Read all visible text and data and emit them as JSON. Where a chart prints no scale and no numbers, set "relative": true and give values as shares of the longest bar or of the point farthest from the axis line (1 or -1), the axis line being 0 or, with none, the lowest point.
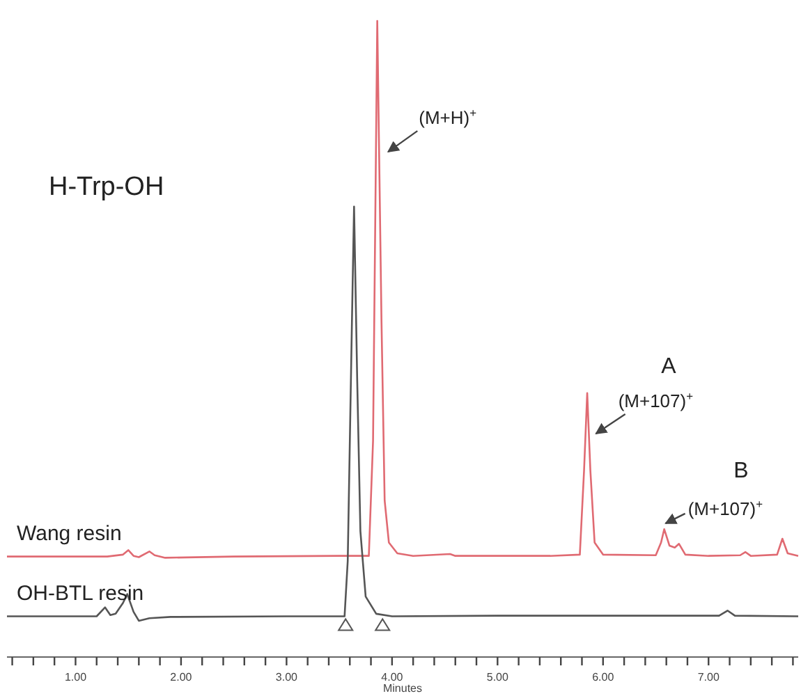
{
  "chart_data": {
    "type": "line",
    "relative": true,
    "xlabel": "Minutes",
    "xlim": [
      0.35,
      7.85
    ],
    "xticks": [
      {
        "value": 0.4,
        "label": null
      },
      {
        "value": 0.6,
        "label": null
      },
      {
        "value": 0.8,
        "label": null
      },
      {
        "value": 1,
        "label": "1.00"
      },
      {
        "value": 1.2,
        "label": null
      },
      {
        "value": 1.4,
        "label": null
      },
      {
        "value": 1.6,
        "label": null
      },
      {
        "value": 1.8,
        "label": null
      },
      {
        "value": 2,
        "label": "2.00"
      },
      {
        "value": 2.2,
        "label": null
      },
      {
        "value": 2.4,
        "label": null
      },
      {
        "value": 2.6,
        "label": null
      },
      {
        "value": 2.8,
        "label": null
      },
      {
        "value": 3,
        "label": "3.00"
      },
      {
        "value": 3.2,
        "label": null
      },
      {
        "value": 3.4,
        "label": null
      },
      {
        "value": 3.6,
        "label": null
      },
      {
        "value": 3.8,
        "label": null
      },
      {
        "value": 4,
        "label": "4.00"
      },
      {
        "value": 4.2,
        "label": null
      },
      {
        "value": 4.4,
        "label": null
      },
      {
        "value": 4.6,
        "label": null
      },
      {
        "value": 4.8,
        "label": null
      },
      {
        "value": 5,
        "label": "5.00"
      },
      {
        "value": 5.2,
        "label": null
      },
      {
        "value": 5.4,
        "label": null
      },
      {
        "value": 5.6,
        "label": null
      },
      {
        "value": 5.8,
        "label": null
      },
      {
        "value": 6,
        "label": "6.00"
      },
      {
        "value": 6.2,
        "label": null
      },
      {
        "value": 6.4,
        "label": null
      },
      {
        "value": 6.6,
        "label": null
      },
      {
        "value": 6.8,
        "label": null
      },
      {
        "value": 7,
        "label": "7.00"
      },
      {
        "value": 7.2,
        "label": null
      },
      {
        "value": 7.4,
        "label": null
      },
      {
        "value": 7.6,
        "label": null
      },
      {
        "value": 7.8,
        "label": null
      }
    ],
    "grid": false,
    "legend": false,
    "marker": "none",
    "line_style": "solid",
    "series": [
      {
        "name": "Wang resin",
        "color": "#e06a72",
        "x": [
          0.35,
          1.3,
          1.45,
          1.5,
          1.55,
          1.6,
          1.7,
          1.75,
          1.85,
          2.5,
          3.5,
          3.78,
          3.82,
          3.86,
          3.9,
          3.93,
          3.97,
          4.05,
          4.2,
          4.55,
          4.6,
          5.5,
          5.78,
          5.82,
          5.85,
          5.88,
          5.92,
          6.0,
          6.5,
          6.55,
          6.58,
          6.63,
          6.68,
          6.72,
          6.78,
          7.0,
          7.3,
          7.35,
          7.4,
          7.65,
          7.7,
          7.75,
          7.85
        ],
        "values": [
          0.158,
          0.158,
          0.161,
          0.168,
          0.159,
          0.157,
          0.166,
          0.16,
          0.156,
          0.158,
          0.159,
          0.159,
          0.34,
          1,
          0.528,
          0.246,
          0.18,
          0.163,
          0.159,
          0.162,
          0.159,
          0.159,
          0.161,
          0.293,
          0.415,
          0.293,
          0.18,
          0.161,
          0.16,
          0.18,
          0.201,
          0.175,
          0.172,
          0.178,
          0.161,
          0.159,
          0.16,
          0.165,
          0.159,
          0.161,
          0.186,
          0.163,
          0.159
        ]
      },
      {
        "name": "OH-BTL resin",
        "color": "#555555",
        "x": [
          0.35,
          1.2,
          1.28,
          1.33,
          1.38,
          1.45,
          1.49,
          1.55,
          1.6,
          1.7,
          1.9,
          3.0,
          3.55,
          3.58,
          3.62,
          3.64,
          3.67,
          3.7,
          3.75,
          3.85,
          4.0,
          5.0,
          7.1,
          7.18,
          7.25,
          7.85
        ],
        "values": [
          0.064,
          0.064,
          0.078,
          0.066,
          0.068,
          0.085,
          0.099,
          0.071,
          0.057,
          0.061,
          0.063,
          0.064,
          0.064,
          0.151,
          0.528,
          0.708,
          0.434,
          0.198,
          0.095,
          0.068,
          0.064,
          0.065,
          0.065,
          0.073,
          0.065,
          0.064
        ]
      }
    ],
    "annotations": [
      "H-Trp-OH",
      {
        "text": "(M+H)$^{+}$",
        "x": 3.95,
        "y": 0.792
      },
      "A",
      {
        "text": "(M+107)$^{+}$",
        "x": 5.92,
        "y": 0.349
      },
      "B",
      {
        "text": "(M+107)$^{+}$",
        "x": 6.58,
        "y": 0.208
      }
    ]
  }
}
